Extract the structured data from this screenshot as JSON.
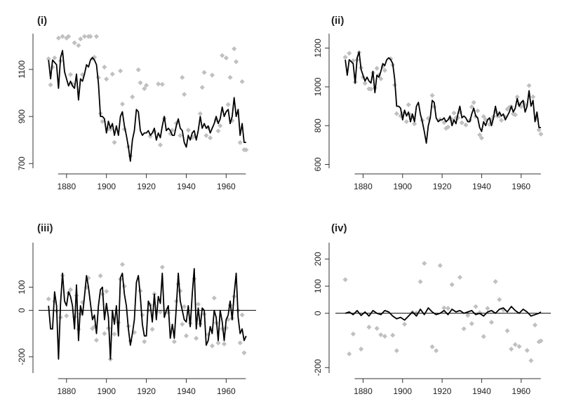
{
  "colors": {
    "line": "#000000",
    "points": "#c0c0c0",
    "axis": "#333333"
  },
  "chart_data": [
    {
      "type": "line",
      "title": "(i)",
      "xlim": [
        1866,
        1975
      ],
      "ylim": [
        680,
        1240
      ],
      "x_ticks": [
        1880,
        1900,
        1920,
        1940,
        1960
      ],
      "y_ticks": [
        700,
        900,
        1100
      ],
      "zero_line": false,
      "series": [
        {
          "kind": "line",
          "x": [
            1871,
            1872,
            1873,
            1874,
            1875,
            1876,
            1877,
            1878,
            1879,
            1880,
            1881,
            1882,
            1883,
            1884,
            1885,
            1886,
            1887,
            1888,
            1889,
            1890,
            1891,
            1892,
            1893,
            1894,
            1895,
            1896,
            1897,
            1898,
            1899,
            1900,
            1901,
            1902,
            1903,
            1904,
            1905,
            1906,
            1907,
            1908,
            1909,
            1910,
            1911,
            1912,
            1913,
            1914,
            1915,
            1916,
            1917,
            1918,
            1919,
            1920,
            1921,
            1922,
            1923,
            1924,
            1925,
            1926,
            1927,
            1928,
            1929,
            1930,
            1931,
            1932,
            1933,
            1934,
            1935,
            1936,
            1937,
            1938,
            1939,
            1940,
            1941,
            1942,
            1943,
            1944,
            1945,
            1946,
            1947,
            1948,
            1949,
            1950,
            1951,
            1952,
            1953,
            1954,
            1955,
            1956,
            1957,
            1958,
            1959,
            1960,
            1961,
            1962,
            1963,
            1964,
            1965,
            1966,
            1967,
            1968,
            1969,
            1970
          ],
          "y": [
            1140,
            1060,
            1140,
            1130,
            1120,
            1020,
            1150,
            1180,
            1090,
            1060,
            1030,
            1050,
            1030,
            1020,
            1080,
            970,
            1060,
            1050,
            1080,
            1120,
            1110,
            1140,
            1150,
            1140,
            1120,
            1040,
            900,
            900,
            890,
            830,
            880,
            850,
            870,
            820,
            860,
            820,
            900,
            920,
            860,
            820,
            770,
            710,
            800,
            840,
            930,
            920,
            840,
            820,
            830,
            830,
            840,
            820,
            830,
            850,
            800,
            830,
            810,
            860,
            900,
            840,
            850,
            840,
            820,
            820,
            860,
            890,
            850,
            840,
            790,
            770,
            820,
            800,
            830,
            840,
            800,
            840,
            900,
            850,
            870,
            850,
            860,
            830,
            850,
            870,
            900,
            870,
            890,
            940,
            900,
            920,
            930,
            870,
            900,
            980,
            900,
            930,
            820,
            870,
            790,
            790
          ]
        }
      ]
    },
    {
      "type": "line",
      "title": "(ii)",
      "xlim": [
        1866,
        1975
      ],
      "ylim": [
        580,
        1260
      ],
      "x_ticks": [
        1880,
        1900,
        1920,
        1940,
        1960
      ],
      "y_ticks": [
        600,
        800,
        1000,
        1200
      ],
      "zero_line": false,
      "series": [
        {
          "kind": "line",
          "x": [
            1871,
            1872,
            1873,
            1874,
            1875,
            1876,
            1877,
            1878,
            1879,
            1880,
            1881,
            1882,
            1883,
            1884,
            1885,
            1886,
            1887,
            1888,
            1889,
            1890,
            1891,
            1892,
            1893,
            1894,
            1895,
            1896,
            1897,
            1898,
            1899,
            1900,
            1901,
            1902,
            1903,
            1904,
            1905,
            1906,
            1907,
            1908,
            1909,
            1910,
            1911,
            1912,
            1913,
            1914,
            1915,
            1916,
            1917,
            1918,
            1919,
            1920,
            1921,
            1922,
            1923,
            1924,
            1925,
            1926,
            1927,
            1928,
            1929,
            1930,
            1931,
            1932,
            1933,
            1934,
            1935,
            1936,
            1937,
            1938,
            1939,
            1940,
            1941,
            1942,
            1943,
            1944,
            1945,
            1946,
            1947,
            1948,
            1949,
            1950,
            1951,
            1952,
            1953,
            1954,
            1955,
            1956,
            1957,
            1958,
            1959,
            1960,
            1961,
            1962,
            1963,
            1964,
            1965,
            1966,
            1967,
            1968,
            1969,
            1970
          ],
          "y": [
            1140,
            1060,
            1140,
            1130,
            1120,
            1020,
            1150,
            1180,
            1090,
            1060,
            1030,
            1050,
            1030,
            1020,
            1080,
            970,
            1060,
            1050,
            1080,
            1120,
            1110,
            1140,
            1150,
            1140,
            1120,
            1040,
            900,
            900,
            890,
            830,
            880,
            850,
            870,
            820,
            860,
            820,
            900,
            920,
            860,
            820,
            770,
            710,
            800,
            840,
            930,
            920,
            840,
            820,
            830,
            830,
            840,
            820,
            830,
            850,
            800,
            830,
            810,
            860,
            900,
            840,
            850,
            840,
            820,
            820,
            860,
            890,
            850,
            840,
            790,
            770,
            820,
            800,
            830,
            840,
            800,
            840,
            900,
            850,
            870,
            850,
            860,
            830,
            850,
            870,
            900,
            870,
            890,
            940,
            900,
            920,
            930,
            870,
            900,
            980,
            900,
            930,
            820,
            870,
            790,
            790
          ]
        }
      ]
    },
    {
      "type": "line",
      "title": "(iii)",
      "xlim": [
        1866,
        1975
      ],
      "ylim": [
        -270,
        280
      ],
      "x_ticks": [
        1880,
        1900,
        1920,
        1940,
        1960
      ],
      "y_ticks": [
        -200,
        0,
        100
      ],
      "zero_line": true,
      "series": [
        {
          "kind": "line",
          "x": [
            1871,
            1872,
            1873,
            1874,
            1875,
            1876,
            1877,
            1878,
            1879,
            1880,
            1881,
            1882,
            1883,
            1884,
            1885,
            1886,
            1887,
            1888,
            1889,
            1890,
            1891,
            1892,
            1893,
            1894,
            1895,
            1896,
            1897,
            1898,
            1899,
            1900,
            1901,
            1902,
            1903,
            1904,
            1905,
            1906,
            1907,
            1908,
            1909,
            1910,
            1911,
            1912,
            1913,
            1914,
            1915,
            1916,
            1917,
            1918,
            1919,
            1920,
            1921,
            1922,
            1923,
            1924,
            1925,
            1926,
            1927,
            1928,
            1929,
            1930,
            1931,
            1932,
            1933,
            1934,
            1935,
            1936,
            1937,
            1938,
            1939,
            1940,
            1941,
            1942,
            1943,
            1944,
            1945,
            1946,
            1947,
            1948,
            1949,
            1950,
            1951,
            1952,
            1953,
            1954,
            1955,
            1956,
            1957,
            1958,
            1959,
            1960,
            1961,
            1962,
            1963,
            1964,
            1965,
            1966,
            1967,
            1968,
            1969,
            1970
          ],
          "y": [
            20,
            -80,
            -80,
            80,
            20,
            -210,
            30,
            160,
            40,
            20,
            80,
            60,
            20,
            -80,
            110,
            -130,
            20,
            -20,
            60,
            150,
            100,
            30,
            -40,
            -20,
            -100,
            20,
            90,
            100,
            -40,
            30,
            -30,
            -210,
            0,
            -60,
            20,
            -110,
            140,
            160,
            70,
            20,
            -80,
            -150,
            -100,
            -40,
            120,
            150,
            60,
            -60,
            -110,
            -110,
            40,
            20,
            -50,
            70,
            -40,
            60,
            30,
            160,
            -30,
            0,
            20,
            -120,
            -60,
            -120,
            10,
            160,
            40,
            0,
            -40,
            -50,
            20,
            -70,
            70,
            180,
            -80,
            10,
            -70,
            10,
            0,
            -150,
            -130,
            -70,
            -100,
            0,
            -30,
            -130,
            0,
            -50,
            -130,
            -40,
            -20,
            40,
            -40,
            70,
            160,
            -30,
            -100,
            -80,
            -130,
            -110
          ]
        }
      ]
    },
    {
      "type": "line",
      "title": "(iv)",
      "xlim": [
        1866,
        1975
      ],
      "ylim": [
        -220,
        250
      ],
      "x_ticks": [
        1880,
        1900,
        1920,
        1940,
        1960
      ],
      "y_ticks": [
        -200,
        0,
        100,
        200
      ],
      "zero_line": true,
      "series": [
        {
          "kind": "line",
          "x": [
            1871,
            1873,
            1875,
            1877,
            1879,
            1881,
            1883,
            1885,
            1887,
            1889,
            1891,
            1893,
            1895,
            1897,
            1899,
            1901,
            1903,
            1905,
            1907,
            1909,
            1911,
            1913,
            1915,
            1917,
            1919,
            1921,
            1923,
            1925,
            1927,
            1929,
            1931,
            1933,
            1935,
            1937,
            1939,
            1941,
            1943,
            1945,
            1947,
            1949,
            1951,
            1953,
            1955,
            1957,
            1959,
            1961,
            1963,
            1965,
            1967,
            1969,
            1970
          ],
          "y": [
            0,
            5,
            -5,
            10,
            -8,
            5,
            -10,
            10,
            0,
            -5,
            10,
            5,
            -10,
            -20,
            -15,
            -25,
            -10,
            5,
            -10,
            15,
            -5,
            20,
            5,
            -5,
            0,
            10,
            -5,
            15,
            5,
            10,
            0,
            5,
            10,
            -5,
            0,
            -10,
            5,
            10,
            0,
            15,
            20,
            5,
            25,
            10,
            0,
            15,
            5,
            -10,
            -5,
            0,
            5
          ]
        }
      ]
    }
  ]
}
